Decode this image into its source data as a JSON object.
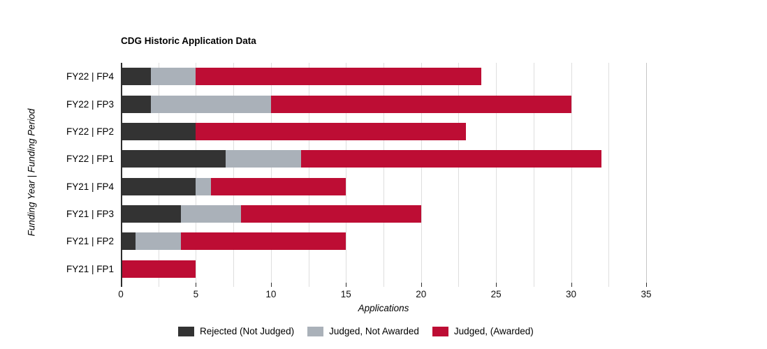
{
  "chart_data": {
    "type": "bar",
    "orientation": "horizontal",
    "stacked": true,
    "title": "CDG Historic Application Data",
    "xlabel": "Applications",
    "ylabel": "Funding Year | Funding Period",
    "categories": [
      "FY22 | FP4",
      "FY22 | FP3",
      "FY22 | FP2",
      "FY22 | FP1",
      "FY21 | FP4",
      "FY21 | FP3",
      "FY21 | FP2",
      "FY21 | FP1"
    ],
    "series": [
      {
        "name": "Rejected (Not Judged)",
        "color": "#333333",
        "values": [
          2,
          2,
          5,
          7,
          5,
          4,
          1,
          0
        ]
      },
      {
        "name": "Judged, Not Awarded",
        "color": "#aab1b9",
        "values": [
          3,
          8,
          0,
          5,
          1,
          4,
          3,
          0
        ]
      },
      {
        "name": "Judged, (Awarded)",
        "color": "#bd0d34",
        "values": [
          19,
          20,
          18,
          20,
          9,
          12,
          11,
          5
        ]
      }
    ],
    "stack_totals": [
      24,
      30,
      23,
      32,
      15,
      20,
      15,
      5
    ],
    "xlim": [
      0,
      35
    ],
    "xticks": [
      0,
      5,
      10,
      15,
      20,
      25,
      30,
      35
    ],
    "grid": {
      "minor_step": 2.5,
      "gridline_color": "#dedede",
      "edge_line_color": "#c6c6c6",
      "axis_color": "#2d2d2d"
    },
    "legend_position": "bottom",
    "background": "#ffffff"
  }
}
